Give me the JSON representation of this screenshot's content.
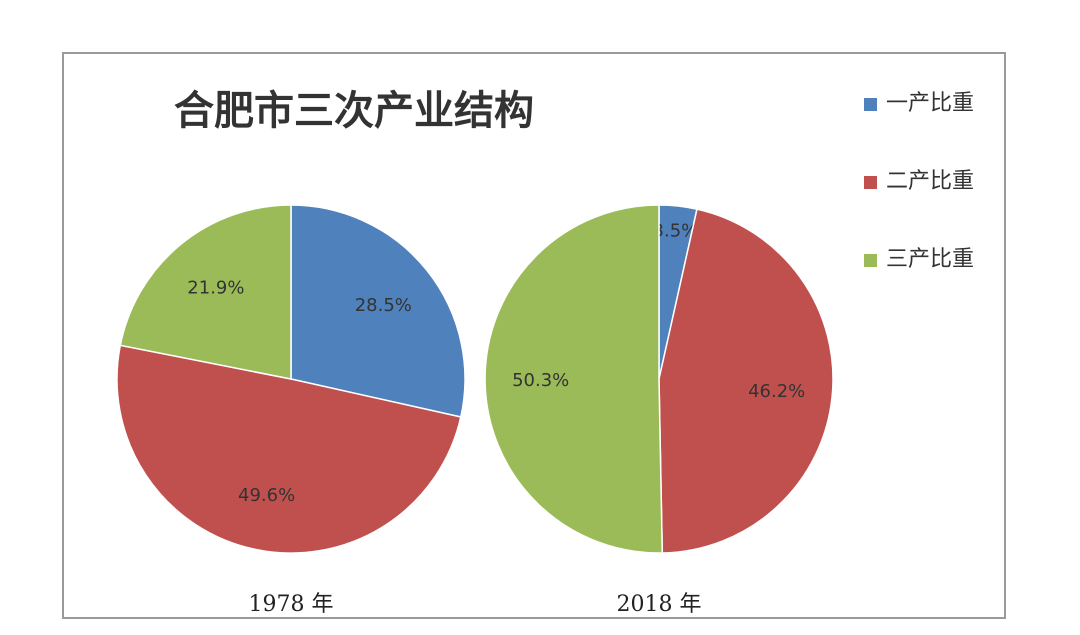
{
  "chart_data": {
    "type": "pie",
    "title": "合肥市三次产业结构",
    "series_names": [
      "一产比重",
      "二产比重",
      "三产比重"
    ],
    "colors": [
      "#4f81bd",
      "#c0504d",
      "#9bbb59"
    ],
    "pies": [
      {
        "label": "1978 年",
        "values": [
          28.5,
          49.6,
          21.9
        ],
        "value_labels": [
          "28.5%",
          "49.6%",
          "21.9%"
        ]
      },
      {
        "label": "2018 年",
        "values": [
          3.5,
          46.2,
          50.3
        ],
        "value_labels": [
          "3.5%",
          "46.2%",
          "50.3%"
        ]
      }
    ],
    "legend_position": "right"
  }
}
